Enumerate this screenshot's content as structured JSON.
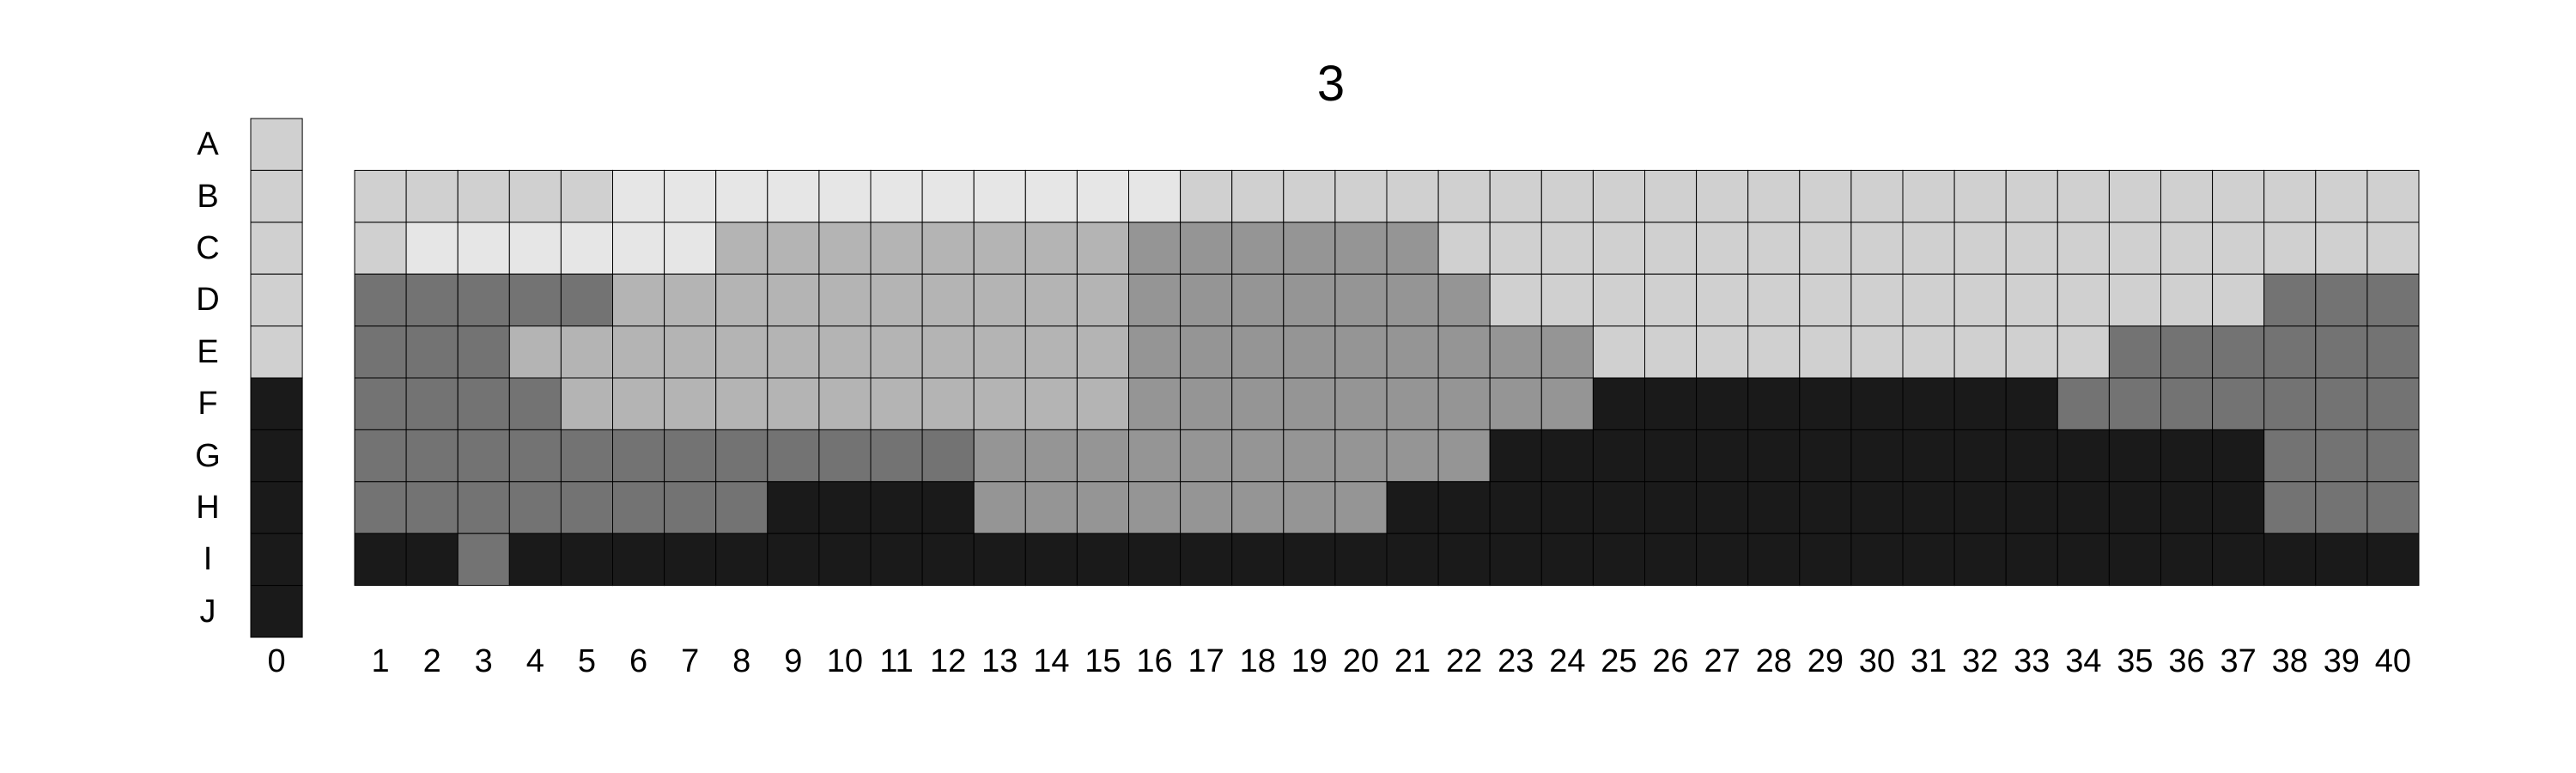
{
  "title": "3",
  "rows": [
    "A",
    "B",
    "C",
    "D",
    "E",
    "F",
    "G",
    "H",
    "I",
    "J"
  ],
  "strip": {
    "column_label": "0",
    "cells": [
      "light",
      "light",
      "light",
      "light",
      "light",
      "black",
      "black",
      "black",
      "black",
      "black"
    ]
  },
  "main": {
    "column_labels": [
      "1",
      "2",
      "3",
      "4",
      "5",
      "6",
      "7",
      "8",
      "9",
      "10",
      "11",
      "12",
      "13",
      "14",
      "15",
      "16",
      "17",
      "18",
      "19",
      "20",
      "21",
      "22",
      "23",
      "24",
      "25",
      "26",
      "27",
      "28",
      "29",
      "30",
      "31",
      "32",
      "33",
      "34",
      "35",
      "36",
      "37",
      "38",
      "39",
      "40"
    ],
    "first_row": "B",
    "grid": [
      [
        "light",
        "light",
        "light",
        "light",
        "light",
        "pale",
        "pale",
        "pale",
        "pale",
        "pale",
        "pale",
        "pale",
        "pale",
        "pale",
        "pale",
        "pale",
        "light",
        "light",
        "light",
        "light",
        "light",
        "light",
        "light",
        "light",
        "light",
        "light",
        "light",
        "light",
        "light",
        "light",
        "light",
        "light",
        "light",
        "light",
        "light",
        "light",
        "light",
        "light",
        "light",
        "light"
      ],
      [
        "light",
        "pale",
        "pale",
        "pale",
        "pale",
        "pale",
        "pale",
        "mid",
        "mid",
        "mid",
        "mid",
        "mid",
        "mid",
        "mid",
        "mid",
        "gray",
        "gray",
        "gray",
        "gray",
        "gray",
        "gray",
        "light",
        "light",
        "light",
        "light",
        "light",
        "light",
        "light",
        "light",
        "light",
        "light",
        "light",
        "light",
        "light",
        "light",
        "light",
        "light",
        "light",
        "light",
        "light"
      ],
      [
        "dark",
        "dark",
        "dark",
        "dark",
        "dark",
        "mid",
        "mid",
        "mid",
        "mid",
        "mid",
        "mid",
        "mid",
        "mid",
        "mid",
        "mid",
        "gray",
        "gray",
        "gray",
        "gray",
        "gray",
        "gray",
        "gray",
        "light",
        "light",
        "light",
        "light",
        "light",
        "light",
        "light",
        "light",
        "light",
        "light",
        "light",
        "light",
        "light",
        "light",
        "light",
        "dark",
        "dark",
        "dark"
      ],
      [
        "dark",
        "dark",
        "dark",
        "mid",
        "mid",
        "mid",
        "mid",
        "mid",
        "mid",
        "mid",
        "mid",
        "mid",
        "mid",
        "mid",
        "mid",
        "gray",
        "gray",
        "gray",
        "gray",
        "gray",
        "gray",
        "gray",
        "gray",
        "gray",
        "light",
        "light",
        "light",
        "light",
        "light",
        "light",
        "light",
        "light",
        "light",
        "light",
        "dark",
        "dark",
        "dark",
        "dark",
        "dark",
        "dark"
      ],
      [
        "dark",
        "dark",
        "dark",
        "dark",
        "mid",
        "mid",
        "mid",
        "mid",
        "mid",
        "mid",
        "mid",
        "mid",
        "mid",
        "mid",
        "mid",
        "gray",
        "gray",
        "gray",
        "gray",
        "gray",
        "gray",
        "gray",
        "gray",
        "gray",
        "black",
        "black",
        "black",
        "black",
        "black",
        "black",
        "black",
        "black",
        "black",
        "dark",
        "dark",
        "dark",
        "dark",
        "dark",
        "dark",
        "dark"
      ],
      [
        "dark",
        "dark",
        "dark",
        "dark",
        "dark",
        "dark",
        "dark",
        "dark",
        "dark",
        "dark",
        "dark",
        "dark",
        "gray",
        "gray",
        "gray",
        "gray",
        "gray",
        "gray",
        "gray",
        "gray",
        "gray",
        "gray",
        "black",
        "black",
        "black",
        "black",
        "black",
        "black",
        "black",
        "black",
        "black",
        "black",
        "black",
        "black",
        "black",
        "black",
        "black",
        "dark",
        "dark",
        "dark"
      ],
      [
        "dark",
        "dark",
        "dark",
        "dark",
        "dark",
        "dark",
        "dark",
        "dark",
        "black",
        "black",
        "black",
        "black",
        "gray",
        "gray",
        "gray",
        "gray",
        "gray",
        "gray",
        "gray",
        "gray",
        "black",
        "black",
        "black",
        "black",
        "black",
        "black",
        "black",
        "black",
        "black",
        "black",
        "black",
        "black",
        "black",
        "black",
        "black",
        "black",
        "black",
        "dark",
        "dark",
        "dark"
      ],
      [
        "black",
        "black",
        "dark",
        "black",
        "black",
        "black",
        "black",
        "black",
        "black",
        "black",
        "black",
        "black",
        "black",
        "black",
        "black",
        "black",
        "black",
        "black",
        "black",
        "black",
        "black",
        "black",
        "black",
        "black",
        "black",
        "black",
        "black",
        "black",
        "black",
        "black",
        "black",
        "black",
        "black",
        "black",
        "black",
        "black",
        "black",
        "black",
        "black",
        "black"
      ]
    ]
  },
  "palette": {
    "pale": "#e6e6e6",
    "light": "#d0d0d0",
    "mid": "#b4b4b4",
    "gray": "#959595",
    "dark": "#737373",
    "black": "#1a1a1a",
    "gridline": "#000000"
  }
}
